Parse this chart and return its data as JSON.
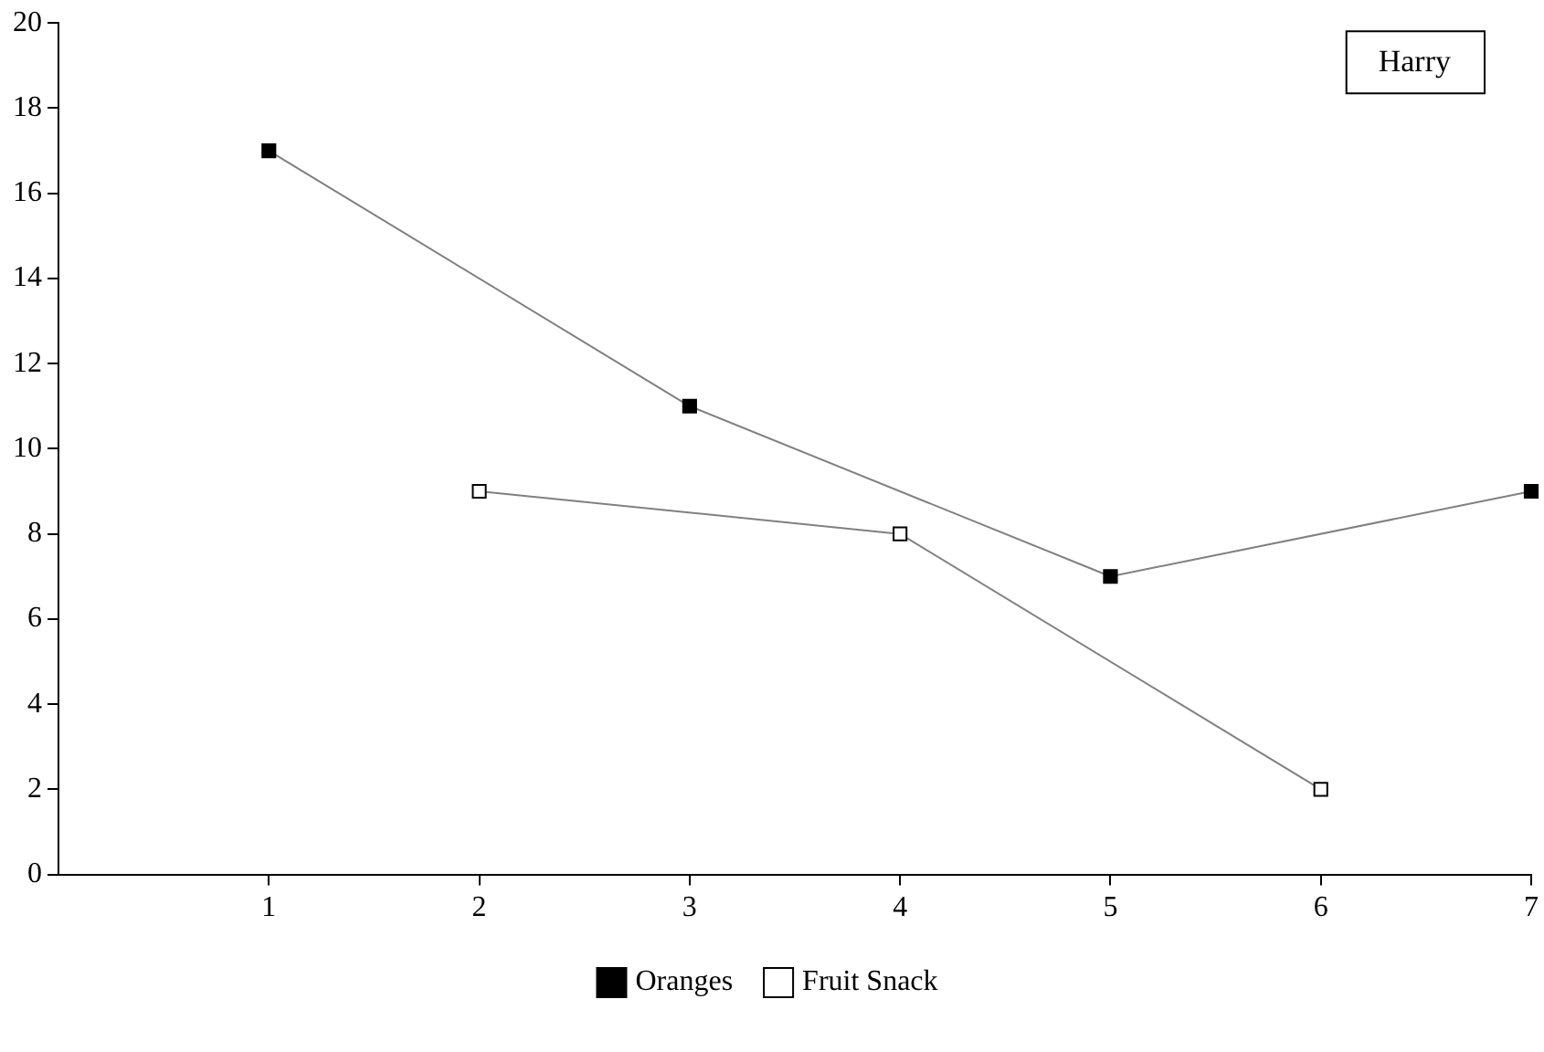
{
  "chart_data": {
    "type": "line",
    "annotations": [
      "Harry"
    ],
    "xlim": [
      0,
      7
    ],
    "xticks": [
      1,
      2,
      3,
      4,
      5,
      6,
      7
    ],
    "ylim": [
      0,
      20
    ],
    "yticks": [
      0,
      2,
      4,
      6,
      8,
      10,
      12,
      14,
      16,
      18,
      20
    ],
    "series": [
      {
        "name": "Oranges",
        "color": "#000000",
        "x": [
          1,
          3,
          5,
          7
        ],
        "values": [
          17,
          11,
          7,
          9
        ]
      },
      {
        "name": "Fruit Snack",
        "color": "#ffffff",
        "x": [
          2,
          4,
          6
        ],
        "values": [
          9,
          8,
          2
        ]
      }
    ],
    "grid": false,
    "legend": "bottom",
    "marker": "square",
    "line_style": "solid"
  }
}
